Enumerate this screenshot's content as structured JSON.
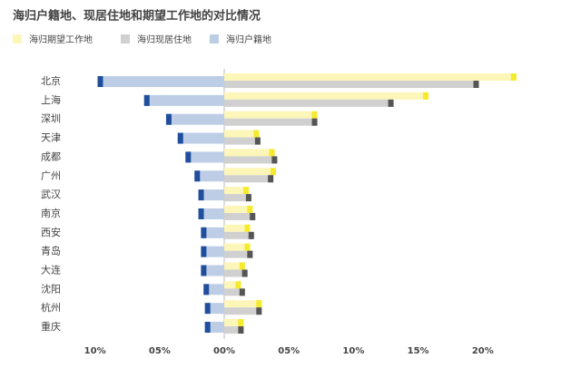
{
  "chart_data": {
    "type": "diverging_bar",
    "title": "海归户籍地、现居住地和期望工作地的对比情况",
    "categories": [
      "北京",
      "上海",
      "深圳",
      "天津",
      "成都",
      "广州",
      "武汉",
      "南京",
      "西安",
      "青岛",
      "大连",
      "沈阳",
      "杭州",
      "重庆"
    ],
    "series": [
      {
        "name": "海归期望工作地",
        "color": "#fcf6b8",
        "end_color": "#f6ea2c",
        "values": [
          22.6,
          15.8,
          7.2,
          2.7,
          3.9,
          4.0,
          1.9,
          2.2,
          2.0,
          2.0,
          1.6,
          1.3,
          2.9,
          1.5
        ]
      },
      {
        "name": "海归现居住地",
        "color": "#d0d0d0",
        "end_color": "#555555",
        "values": [
          19.7,
          13.1,
          7.2,
          2.8,
          4.1,
          3.8,
          2.1,
          2.4,
          2.3,
          2.2,
          1.8,
          1.6,
          2.9,
          1.5
        ]
      },
      {
        "name": "海归户籍地",
        "color": "#bdcde6",
        "end_color": "#1f4f9c",
        "values": [
          -9.8,
          -6.2,
          -4.5,
          -3.6,
          -3.0,
          -2.3,
          -2.0,
          -2.0,
          -1.8,
          -1.8,
          -1.8,
          -1.6,
          -1.5,
          -1.5
        ]
      }
    ],
    "xlim": [
      -11,
      23
    ],
    "xticks": [
      {
        "value": -10,
        "label": "10%"
      },
      {
        "value": -5,
        "label": "05%"
      },
      {
        "value": 0,
        "label": "00%"
      },
      {
        "value": 5,
        "label": "05%"
      },
      {
        "value": 10,
        "label": "10%"
      },
      {
        "value": 15,
        "label": "15%"
      },
      {
        "value": 20,
        "label": "20%"
      }
    ]
  }
}
